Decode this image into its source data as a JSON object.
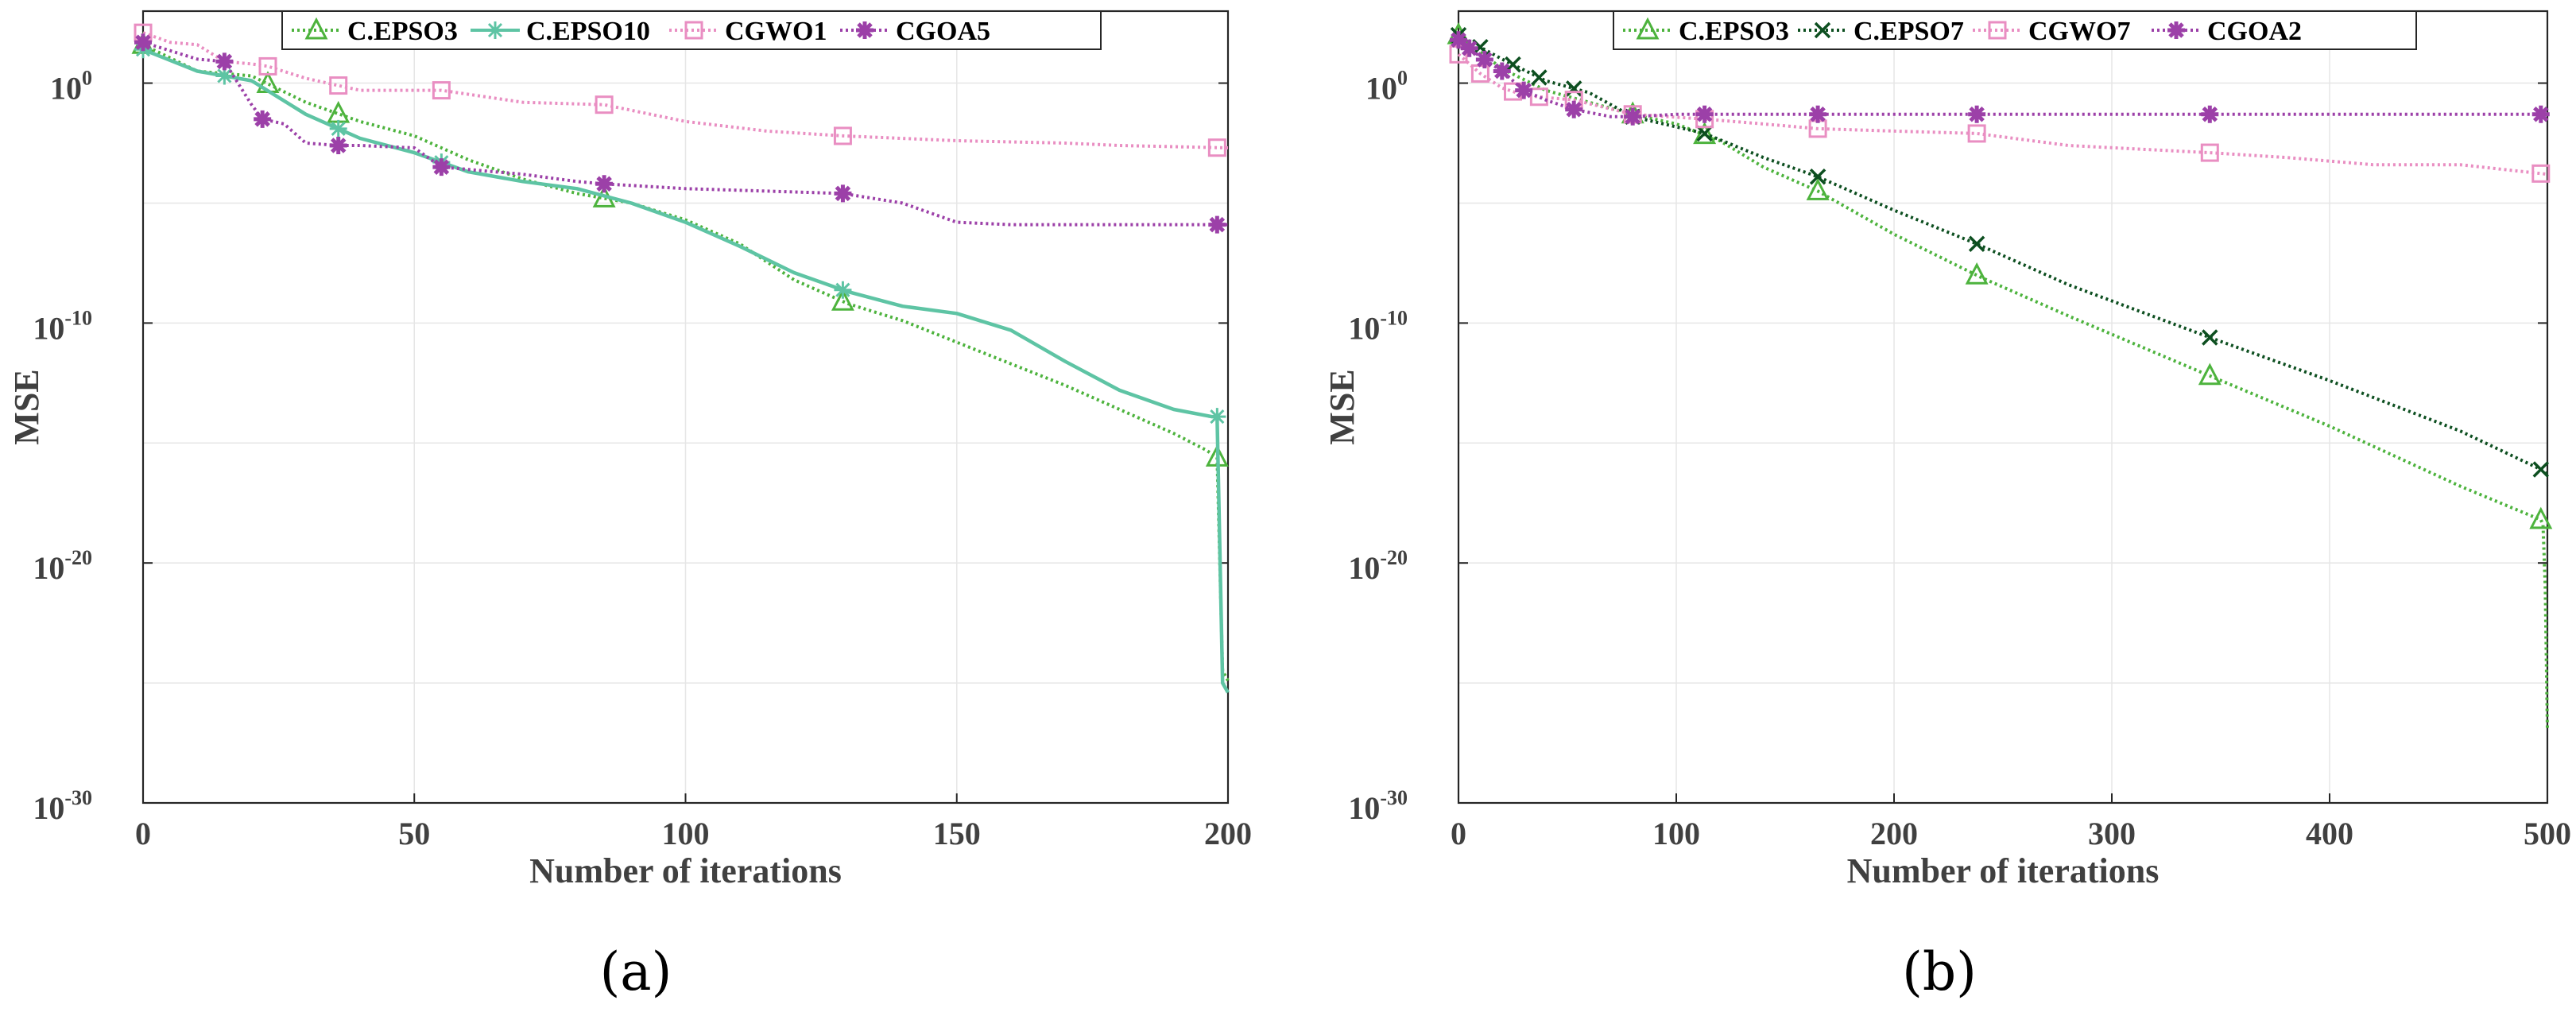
{
  "chart_data": [
    {
      "type": "line",
      "panel": "(a)",
      "xlabel": "Number of iterations",
      "ylabel": "MSE",
      "yscale": "log",
      "xlim": [
        0,
        200
      ],
      "ylim_exp": [
        -30,
        3
      ],
      "xticks": [
        0,
        50,
        100,
        150,
        200
      ],
      "yticks_exp": [
        0,
        -10,
        -20,
        -30
      ],
      "legend_position": "top-center",
      "series": [
        {
          "name": "C.EPSO3",
          "color": "#4db33d",
          "style": "dotted",
          "marker": "triangle",
          "x": [
            0,
            10,
            20,
            30,
            40,
            50,
            60,
            70,
            80,
            90,
            100,
            110,
            120,
            130,
            140,
            150,
            160,
            170,
            180,
            190,
            196,
            198,
            199,
            200
          ],
          "y": [
            1.6,
            0.5,
            0.3,
            -0.8,
            -1.6,
            -2.2,
            -3.2,
            -4.0,
            -4.6,
            -5.0,
            -5.7,
            -6.7,
            -8.2,
            -9.2,
            -9.9,
            -10.8,
            -11.7,
            -12.6,
            -13.6,
            -14.6,
            -15.3,
            -15.6,
            -24.5,
            -24.9
          ],
          "marker_x": [
            0,
            23,
            36,
            85,
            129,
            198
          ]
        },
        {
          "name": "C.EPSO10",
          "color": "#5ec4a4",
          "style": "solid",
          "marker": "star",
          "x": [
            0,
            10,
            20,
            30,
            40,
            50,
            60,
            70,
            80,
            90,
            100,
            110,
            120,
            130,
            140,
            150,
            160,
            170,
            180,
            190,
            197,
            198,
            199,
            200
          ],
          "y": [
            1.4,
            0.5,
            0.1,
            -1.3,
            -2.3,
            -2.9,
            -3.7,
            -4.1,
            -4.4,
            -5.0,
            -5.8,
            -6.8,
            -7.9,
            -8.7,
            -9.3,
            -9.6,
            -10.3,
            -11.6,
            -12.8,
            -13.6,
            -13.9,
            -13.9,
            -25.0,
            -25.4
          ],
          "marker_x": [
            0,
            15,
            36,
            55,
            129,
            198
          ]
        },
        {
          "name": "CGWO1",
          "color": "#e98ec2",
          "style": "dotted",
          "marker": "square",
          "x": [
            0,
            5,
            10,
            15,
            20,
            23,
            30,
            36,
            40,
            55,
            70,
            85,
            100,
            115,
            129,
            150,
            170,
            180,
            200
          ],
          "y": [
            2.1,
            1.7,
            1.6,
            0.9,
            0.8,
            0.7,
            0.2,
            -0.1,
            -0.3,
            -0.3,
            -0.8,
            -0.9,
            -1.6,
            -2.0,
            -2.2,
            -2.4,
            -2.5,
            -2.6,
            -2.7
          ],
          "marker_x": [
            0,
            23,
            36,
            55,
            85,
            129,
            198
          ]
        },
        {
          "name": "CGOA5",
          "color": "#9c40a8",
          "style": "dotted",
          "marker": "asterisk",
          "x": [
            0,
            10,
            15,
            20,
            22,
            26,
            30,
            36,
            40,
            50,
            55,
            60,
            70,
            80,
            85,
            100,
            115,
            129,
            140,
            150,
            160,
            170,
            200
          ],
          "y": [
            1.7,
            1.0,
            0.9,
            -0.9,
            -1.5,
            -1.7,
            -2.5,
            -2.6,
            -2.6,
            -2.7,
            -3.5,
            -3.6,
            -3.8,
            -4.1,
            -4.2,
            -4.4,
            -4.5,
            -4.6,
            -5.0,
            -5.8,
            -5.9,
            -5.9,
            -5.9
          ],
          "marker_x": [
            0,
            15,
            22,
            36,
            55,
            85,
            129,
            198
          ]
        }
      ]
    },
    {
      "type": "line",
      "panel": "(b)",
      "xlabel": "Number of iterations",
      "ylabel": "MSE",
      "yscale": "log",
      "xlim": [
        0,
        500
      ],
      "ylim_exp": [
        -30,
        3
      ],
      "xticks": [
        0,
        100,
        200,
        300,
        400,
        500
      ],
      "yticks_exp": [
        0,
        -10,
        -20,
        -30
      ],
      "legend_position": "top-center",
      "series": [
        {
          "name": "C.EPSO3",
          "color": "#4db33d",
          "style": "dotted",
          "marker": "triangle",
          "x": [
            0,
            20,
            40,
            60,
            80,
            100,
            120,
            140,
            165,
            200,
            240,
            280,
            345,
            400,
            460,
            497,
            498,
            499,
            500
          ],
          "y": [
            2.0,
            0.6,
            -0.3,
            -0.8,
            -1.3,
            -1.7,
            -2.4,
            -3.5,
            -4.5,
            -6.3,
            -8.1,
            -9.7,
            -12.2,
            -14.3,
            -16.8,
            -18.2,
            -18.4,
            -21.0,
            -26.9
          ],
          "marker_x": [
            0,
            80,
            113,
            165,
            238,
            345,
            497
          ]
        },
        {
          "name": "C.EPSO7",
          "color": "#0d4f20",
          "style": "dotted",
          "marker": "x",
          "x": [
            0,
            10,
            20,
            40,
            60,
            80,
            113,
            140,
            165,
            200,
            238,
            280,
            345,
            400,
            460,
            497,
            500
          ],
          "y": [
            2.0,
            1.5,
            1.0,
            0.1,
            -0.4,
            -1.4,
            -2.1,
            -3.1,
            -3.9,
            -5.3,
            -6.7,
            -8.4,
            -10.6,
            -12.4,
            -14.5,
            -16.1,
            -16.3
          ],
          "marker_x": [
            0,
            10,
            25,
            37,
            53,
            80,
            113,
            165,
            238,
            345,
            497
          ]
        },
        {
          "name": "CGWO7",
          "color": "#e98ec2",
          "style": "dotted",
          "marker": "square",
          "x": [
            0,
            10,
            20,
            30,
            40,
            53,
            80,
            113,
            140,
            165,
            200,
            238,
            280,
            345,
            380,
            420,
            460,
            500
          ],
          "y": [
            1.2,
            0.4,
            -0.2,
            -0.5,
            -0.6,
            -0.7,
            -1.3,
            -1.5,
            -1.7,
            -1.9,
            -2.0,
            -2.1,
            -2.6,
            -2.9,
            -3.1,
            -3.4,
            -3.4,
            -3.8
          ],
          "marker_x": [
            0,
            10,
            25,
            37,
            53,
            80,
            113,
            165,
            238,
            345,
            497
          ]
        },
        {
          "name": "CGOA2",
          "color": "#9c40a8",
          "style": "dotted",
          "marker": "asterisk",
          "x": [
            0,
            10,
            20,
            30,
            40,
            53,
            70,
            80,
            100,
            113,
            140,
            165,
            200,
            238,
            300,
            345,
            400,
            500
          ],
          "y": [
            1.8,
            1.1,
            0.5,
            -0.3,
            -0.7,
            -1.1,
            -1.4,
            -1.4,
            -1.3,
            -1.3,
            -1.3,
            -1.3,
            -1.3,
            -1.3,
            -1.3,
            -1.3,
            -1.3,
            -1.3
          ],
          "marker_x": [
            0,
            5,
            12,
            20,
            30,
            53,
            80,
            113,
            165,
            238,
            345,
            497
          ]
        }
      ]
    }
  ]
}
